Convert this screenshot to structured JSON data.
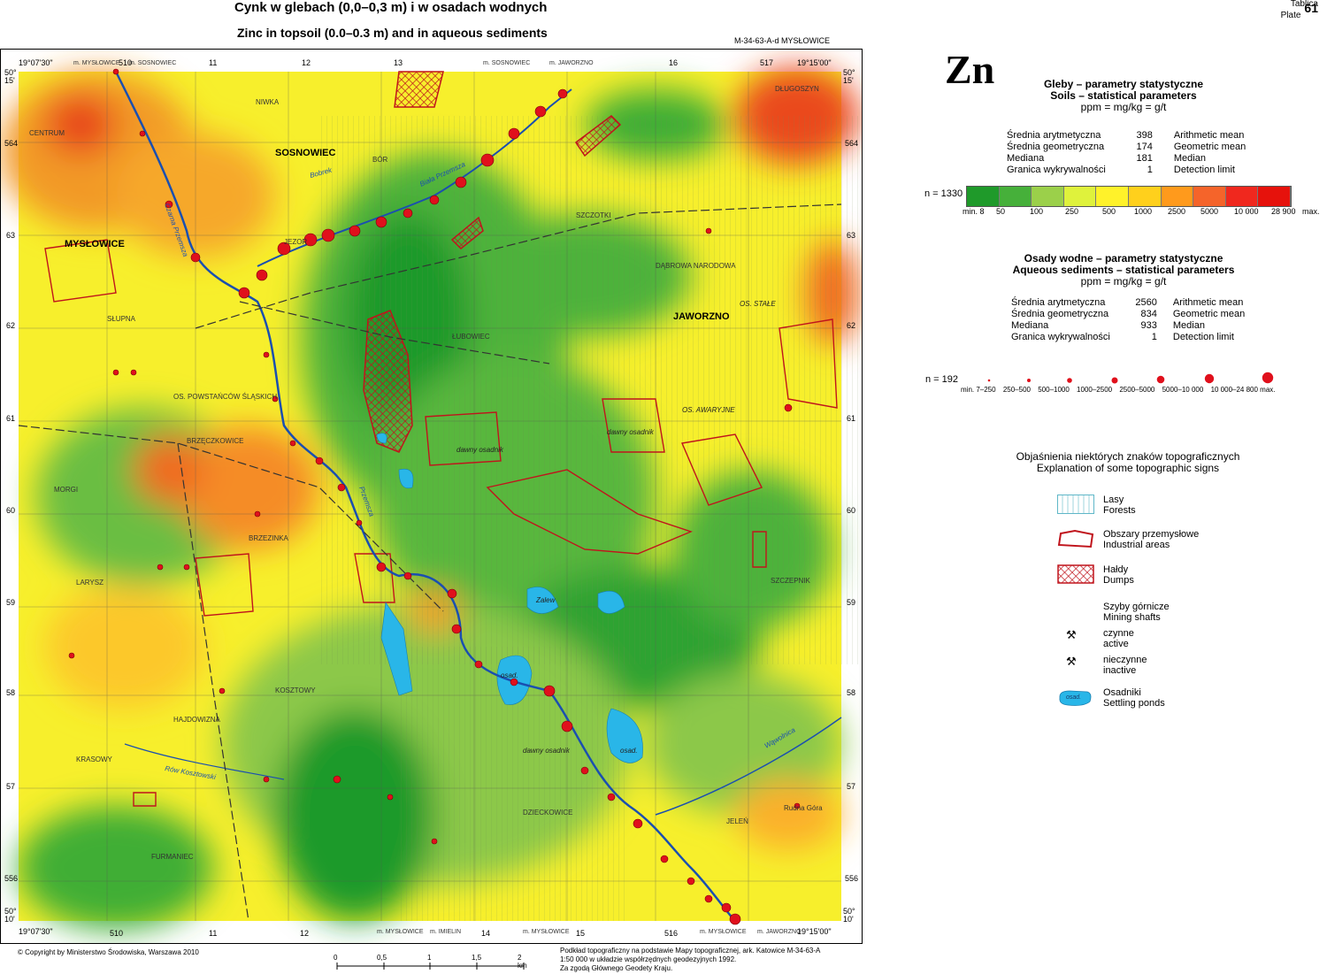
{
  "header": {
    "title_pl": "Cynk w  glebach (0,0–0,3 m) i w osadach wodnych",
    "title_en": "Zinc in topsoil (0.0–0.3 m) and in aqueous sediments",
    "sheet": "M-34-63-A-d MYSŁOWICE",
    "plate_label_pl": "Tablica",
    "plate_label_en": "Plate",
    "plate_number": "61"
  },
  "map": {
    "corner_tl_lon": "19°07'30\"",
    "corner_tr_lon": "19°15'00\"",
    "corner_bl_lon": "19°07'30\"",
    "corner_br_lon": "19°15'00\"",
    "lat_top_deg": "50°",
    "lat_top_min": "15'",
    "lat_bottom_deg": "50°",
    "lat_bottom_min": "10'",
    "grid_top": [
      "510",
      "11",
      "12",
      "13",
      "16",
      "517"
    ],
    "grid_bottom": [
      "510",
      "11",
      "12",
      "14",
      "15",
      "516"
    ],
    "grid_left": [
      "564",
      "63",
      "62",
      "61",
      "60",
      "59",
      "58",
      "57",
      "556"
    ],
    "neighbors_top": [
      "m. MYSŁOWICE",
      "m. SOSNOWIEC",
      "m. SOSNOWIEC",
      "m. JAWORZNO"
    ],
    "neighbors_bottom": [
      "m. MYSŁOWICE",
      "m. IMIELIN",
      "m. MYSŁOWICE",
      "m. MYSŁOWICE",
      "m. JAWORZNO"
    ],
    "places": [
      "MYSŁOWICE",
      "SOSNOWIEC",
      "JAWORZNO",
      "CENTRUM",
      "NIWKA",
      "BÓR",
      "JEZOR",
      "SZCZOTKI",
      "DĄBROWA NARODOWA",
      "ŁUBOWIEC",
      "SŁUPNA",
      "OS. POWSTAŃCÓW ŚLĄSKICH",
      "BRZĘCZKOWICE",
      "MORGI",
      "BRZEZINKA",
      "LARYSZ",
      "HAJDOWIZNA",
      "KOSZTOWY",
      "KRASOWY",
      "FURMANIEC",
      "DZIECKOWICE",
      "JELEŃ",
      "SZCZEPNIK",
      "DŁUGOSZYN",
      "Rudna Góra",
      "Przemsza",
      "Czarna Przemsza",
      "Biała Przemsza",
      "Bobrek",
      "Rów Kosztowski",
      "Wąwolnica",
      "dawny osadnik",
      "osad.",
      "Zalew",
      "OS. STAŁE",
      "OS. AWARYJNE"
    ]
  },
  "zn_symbol": "Zn",
  "soils": {
    "title_pl": "Gleby – parametry statystyczne",
    "title_en": "Soils – statistical parameters",
    "units": "ppm = mg/kg = g/t",
    "rows": [
      {
        "pl": "Średnia arytmetyczna",
        "value": "398",
        "en": "Arithmetic mean"
      },
      {
        "pl": "Średnia geometryczna",
        "value": "174",
        "en": "Geometric mean"
      },
      {
        "pl": "Mediana",
        "value": "181",
        "en": "Median"
      },
      {
        "pl": "Granica wykrywalności",
        "value": "1",
        "en": "Detection limit"
      }
    ],
    "n_label": "n = 1330",
    "scale_labels": [
      "min. 8",
      "50",
      "100",
      "250",
      "500",
      "1000",
      "2500",
      "5000",
      "10 000",
      "28 900",
      "max."
    ],
    "scale_colors": [
      "#1f9a2a",
      "#46b03a",
      "#9bd04a",
      "#dff23c",
      "#fff22a",
      "#ffd01c",
      "#ff9a1c",
      "#f5642a",
      "#f0281e",
      "#e6120c"
    ]
  },
  "sediments": {
    "title_pl": "Osady wodne – parametry statystyczne",
    "title_en": "Aqueous sediments – statistical parameters",
    "units": "ppm = mg/kg = g/t",
    "rows": [
      {
        "pl": "Średnia arytmetyczna",
        "value": "2560",
        "en": "Arithmetic mean"
      },
      {
        "pl": "Średnia geometryczna",
        "value": "834",
        "en": "Geometric mean"
      },
      {
        "pl": "Mediana",
        "value": "933",
        "en": "Median"
      },
      {
        "pl": "Granica wykrywalności",
        "value": "1",
        "en": "Detection limit"
      }
    ],
    "n_label": "n = 192",
    "class_labels": [
      "min. 7–250",
      "250–500",
      "500–1000",
      "1000–2500",
      "2500–5000",
      "5000–10 000",
      "10 000–24 800 max."
    ],
    "dot_color": "#e0101c"
  },
  "topo": {
    "title_pl": "Objaśnienia niektórych znaków topograficznych",
    "title_en": "Explanation of some topographic signs",
    "items": [
      {
        "pl": "Lasy",
        "en": "Forests",
        "icon": "forest-icon"
      },
      {
        "pl": "Obszary przemysłowe",
        "en": "Industrial areas",
        "icon": "industrial-area-icon"
      },
      {
        "pl": "Hałdy",
        "en": "Dumps",
        "icon": "dump-icon"
      },
      {
        "pl": "Szyby górnicze",
        "en": "Mining shafts",
        "icon": ""
      },
      {
        "pl": "czynne",
        "en": "active",
        "icon": "active-shaft-icon"
      },
      {
        "pl": "nieczynne",
        "en": "inactive",
        "icon": "inactive-shaft-icon"
      },
      {
        "pl": "Osadniki",
        "en": "Settling ponds",
        "icon": "settling-pond-icon"
      }
    ],
    "pond_label": "osad."
  },
  "footer": {
    "copyright": "© Copyright by Ministerstwo Środowiska, Warszawa 2010",
    "scale_labels": [
      "0",
      "0,5",
      "1",
      "1,5",
      "2 km"
    ],
    "note_lines": [
      "Podkład topograficzny na podstawie Mapy topograficznej, ark. Katowice M-34-63-A",
      "1:50 000 w układzie współrzędnych geodezyjnych 1992.",
      "Za zgodą Głównego Geodety Kraju."
    ]
  }
}
